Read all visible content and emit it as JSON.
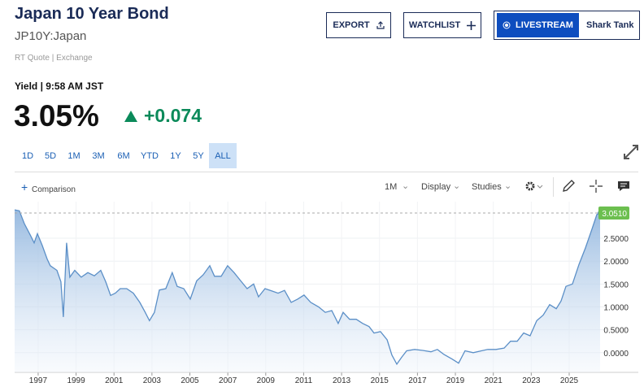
{
  "header": {
    "title": "Japan 10 Year Bond",
    "symbol": "JP10Y:Japan",
    "source": "RT Quote | Exchange"
  },
  "buttons": {
    "export": "EXPORT",
    "watchlist": "WATCHLIST",
    "livestream": "LIVESTREAM",
    "show": "Shark Tank"
  },
  "quote": {
    "label": "Yield | 9:58 AM JST",
    "last": "3.05%",
    "change": "+0.074"
  },
  "ranges": [
    "1D",
    "5D",
    "1M",
    "3M",
    "6M",
    "YTD",
    "1Y",
    "5Y",
    "ALL"
  ],
  "active_range": "ALL",
  "toolbar": {
    "comparison": "Comparison",
    "interval": "1M",
    "display": "Display",
    "studies": "Studies"
  },
  "chart_data": {
    "type": "area",
    "color": "#5b8fc7",
    "x": [
      1995.76,
      1996.01,
      1996.27,
      1996.61,
      1996.79,
      1996.96,
      1997.21,
      1997.47,
      1997.64,
      1997.99,
      1998.2,
      1998.33,
      1998.5,
      1998.67,
      1998.93,
      1999.27,
      1999.62,
      1999.96,
      2000.3,
      2000.56,
      2000.82,
      2001.07,
      2001.33,
      2001.67,
      2002.02,
      2002.36,
      2002.62,
      2002.87,
      2003.13,
      2003.39,
      2003.73,
      2004.07,
      2004.33,
      2004.68,
      2005.02,
      2005.36,
      2005.7,
      2006.05,
      2006.3,
      2006.65,
      2006.99,
      2007.33,
      2007.68,
      2008.02,
      2008.36,
      2008.62,
      2008.96,
      2009.31,
      2009.65,
      2009.99,
      2010.34,
      2010.68,
      2011.02,
      2011.37,
      2011.79,
      2012.14,
      2012.48,
      2012.82,
      2013.08,
      2013.42,
      2013.77,
      2014.11,
      2014.45,
      2014.71,
      2015.05,
      2015.4,
      2015.65,
      2015.91,
      2016.17,
      2016.43,
      2016.85,
      2017.28,
      2017.71,
      2018.05,
      2018.4,
      2018.83,
      2019.17,
      2019.51,
      2019.94,
      2020.37,
      2020.71,
      2021.14,
      2021.57,
      2021.91,
      2022.26,
      2022.6,
      2022.94,
      2023.29,
      2023.63,
      2023.97,
      2024.32,
      2024.57,
      2024.83,
      2025.17,
      2025.52,
      2025.86,
      2026.2,
      2026.46,
      2026.63
    ],
    "values": [
      3.12,
      3.1,
      2.82,
      2.55,
      2.4,
      2.6,
      2.35,
      2.05,
      1.9,
      1.8,
      1.55,
      0.78,
      2.4,
      1.65,
      1.8,
      1.65,
      1.75,
      1.68,
      1.8,
      1.55,
      1.25,
      1.3,
      1.4,
      1.4,
      1.3,
      1.1,
      0.9,
      0.7,
      0.88,
      1.37,
      1.4,
      1.75,
      1.45,
      1.4,
      1.17,
      1.57,
      1.7,
      1.9,
      1.67,
      1.67,
      1.9,
      1.75,
      1.57,
      1.4,
      1.5,
      1.22,
      1.4,
      1.35,
      1.3,
      1.36,
      1.1,
      1.17,
      1.26,
      1.1,
      1.0,
      0.88,
      0.92,
      0.64,
      0.88,
      0.73,
      0.73,
      0.64,
      0.57,
      0.43,
      0.46,
      0.28,
      -0.05,
      -0.25,
      -0.1,
      0.04,
      0.07,
      0.05,
      0.02,
      0.07,
      -0.04,
      -0.14,
      -0.23,
      0.04,
      0.0,
      0.04,
      0.07,
      0.07,
      0.1,
      0.25,
      0.25,
      0.43,
      0.37,
      0.7,
      0.82,
      1.05,
      0.96,
      1.13,
      1.45,
      1.5,
      1.93,
      2.29,
      2.7,
      3.02,
      3.051
    ],
    "last_price": {
      "value": 3.051,
      "label": "3.0510"
    },
    "xlim": [
      1995.76,
      2026.93
    ],
    "ylim": [
      -0.43,
      3.3
    ],
    "xticks": [
      1997,
      1999,
      2001,
      2003,
      2005,
      2007,
      2009,
      2011,
      2013,
      2015,
      2017,
      2019,
      2021,
      2023,
      2025
    ],
    "yticks": [
      {
        "value": 0,
        "label": "0.0000"
      },
      {
        "value": 0.5,
        "label": "0.5000"
      },
      {
        "value": 1,
        "label": "1.0000"
      },
      {
        "value": 1.5,
        "label": "1.5000"
      },
      {
        "value": 2,
        "label": "2.0000"
      },
      {
        "value": 2.5,
        "label": "2.5000"
      }
    ],
    "grid": true
  }
}
